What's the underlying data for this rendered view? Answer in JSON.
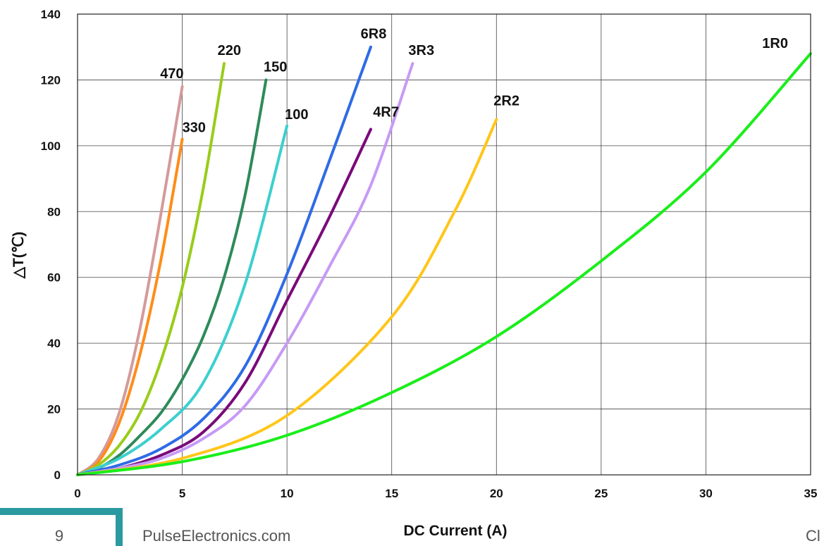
{
  "chart_data": {
    "type": "line",
    "xlabel": "DC Current (A)",
    "ylabel": "△T(℃)",
    "xlim": [
      0,
      35
    ],
    "ylim": [
      0,
      140
    ],
    "xticks": [
      0,
      5,
      10,
      15,
      20,
      25,
      30,
      35
    ],
    "yticks": [
      0,
      20,
      40,
      60,
      80,
      100,
      120,
      140
    ],
    "grid": true,
    "series": [
      {
        "name": "470",
        "color": "#d59a9a",
        "x": [
          0,
          1,
          2,
          3,
          4,
          5
        ],
        "y": [
          0,
          5,
          19,
          45,
          80,
          118
        ]
      },
      {
        "name": "330",
        "color": "#ff8c1a",
        "x": [
          0,
          1,
          2,
          3,
          4,
          5
        ],
        "y": [
          0,
          4,
          16,
          37,
          66,
          102
        ]
      },
      {
        "name": "220",
        "color": "#99cc1a",
        "x": [
          0,
          1,
          2,
          3,
          4,
          5,
          6,
          7
        ],
        "y": [
          0,
          3,
          9,
          19,
          35,
          57,
          87,
          125
        ]
      },
      {
        "name": "150",
        "color": "#2e8b5a",
        "x": [
          0,
          1,
          2,
          3,
          4,
          5,
          6,
          7,
          8,
          9
        ],
        "y": [
          0,
          2,
          6,
          12,
          19,
          29,
          42,
          60,
          85,
          120
        ]
      },
      {
        "name": "100",
        "color": "#3ccfcf",
        "x": [
          0,
          2,
          4,
          6,
          8,
          10
        ],
        "y": [
          0,
          5,
          14,
          28,
          58,
          106
        ]
      },
      {
        "name": "6R8",
        "color": "#2e6be6",
        "x": [
          0,
          2,
          4,
          6,
          8,
          10,
          12,
          14
        ],
        "y": [
          0,
          3,
          8,
          17,
          33,
          61,
          95,
          130
        ]
      },
      {
        "name": "4R7",
        "color": "#7a0a7a",
        "x": [
          0,
          2,
          4,
          6,
          8,
          10,
          12,
          14
        ],
        "y": [
          0,
          2,
          6,
          13,
          28,
          53,
          78,
          105
        ]
      },
      {
        "name": "3R3",
        "color": "#c79af5",
        "x": [
          0,
          2,
          4,
          6,
          8,
          10,
          12,
          14,
          16
        ],
        "y": [
          0,
          2,
          5,
          11,
          21,
          40,
          63,
          88,
          125
        ]
      },
      {
        "name": "2R2",
        "color": "#ffc61a",
        "x": [
          0,
          5,
          10,
          15,
          18,
          20
        ],
        "y": [
          0,
          5,
          18,
          48,
          80,
          108
        ]
      },
      {
        "name": "1R0",
        "color": "#1aee1a",
        "x": [
          0,
          5,
          10,
          15,
          20,
          25,
          30,
          35
        ],
        "y": [
          0,
          4,
          12,
          25,
          42,
          65,
          92,
          128
        ]
      }
    ]
  },
  "footer": {
    "page_number": "9",
    "website": "PulseElectronics.com",
    "corner_text": "Cl"
  },
  "colors": {
    "footer_accent": "#2a9aa0"
  }
}
